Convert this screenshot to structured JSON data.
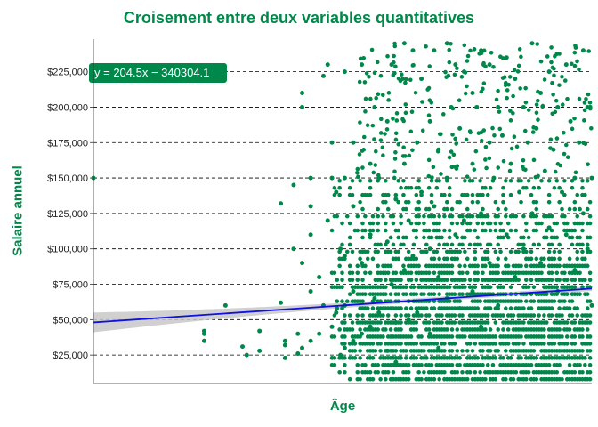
{
  "chart_data": {
    "type": "scatter",
    "title": "Croisement entre deux variables quantitatives",
    "xlabel": "Âge",
    "ylabel": "Salaire annuel",
    "x_tick_labels": [],
    "y_ticks": [
      {
        "value": 25000,
        "label": "$25,000"
      },
      {
        "value": 50000,
        "label": "$50,000"
      },
      {
        "value": 75000,
        "label": "$75,000"
      },
      {
        "value": 100000,
        "label": "$100,000"
      },
      {
        "value": 125000,
        "label": "$125,000"
      },
      {
        "value": 150000,
        "label": "$150,000"
      },
      {
        "value": 175000,
        "label": "$175,000"
      },
      {
        "value": 200000,
        "label": "$200,000"
      },
      {
        "value": 225000,
        "label": "$225,000"
      }
    ],
    "xlim": [
      1899,
      2016
    ],
    "ylim": [
      5000,
      248000
    ],
    "grid": "horizontal dashed",
    "annotation": "y = 204.5x − 340304.1",
    "regression": {
      "slope": 204.5,
      "intercept": -340304.1
    },
    "colors": {
      "points": "#00884a",
      "line": "#1010e0",
      "band": "#c8c8c8",
      "annotation_bg": "#00884a",
      "title": "#00884a"
    },
    "series": [
      {
        "x": [
          1899,
          1925,
          1925,
          1925,
          1930,
          1934,
          1935,
          1938,
          1938,
          1943,
          1943,
          1944,
          1944,
          1944,
          1946,
          1946,
          1947,
          1947,
          1948,
          1948,
          1948,
          1948,
          1950,
          1950,
          1950,
          1950,
          1950,
          1952,
          1952,
          1953,
          1953,
          1954,
          1954,
          1955,
          1955,
          1955,
          1956,
          1956,
          1957,
          1957,
          1958,
          1958,
          1958,
          1958,
          1958,
          1960,
          1960,
          1960,
          1960,
          1962,
          1962,
          1962,
          1964,
          1964,
          1964,
          1965,
          1965,
          1966,
          1966,
          1968,
          1968,
          1968,
          1969,
          1969,
          1970,
          1970,
          1970,
          1972,
          1972,
          1972,
          1973,
          1973,
          1974,
          1974,
          1975,
          1975,
          1976,
          1976,
          1978,
          1978,
          1978,
          1979,
          1979,
          1980,
          1980,
          1980,
          1982,
          1982,
          1982,
          1983,
          1984,
          1984,
          1985,
          1985,
          1986,
          1986,
          1988,
          1988,
          1988,
          1989,
          1990,
          1990,
          1990,
          1992,
          1992,
          1992,
          1993,
          1994,
          1994,
          1995,
          1996,
          1996,
          1997,
          1998,
          1998,
          1999,
          2000,
          2000,
          2001,
          2002,
          2002,
          2003,
          2004,
          2004,
          2005,
          2006,
          2006,
          2007,
          2008,
          2008,
          2009,
          2010,
          2010,
          2011,
          2012,
          2012,
          2013,
          2014,
          2014,
          2015,
          2015,
          2016,
          2016
        ],
        "y": [
          150000,
          35000,
          40000,
          42000,
          60000,
          31000,
          25000,
          42000,
          28000,
          132000,
          62000,
          32000,
          35000,
          23000,
          145000,
          100000,
          40000,
          26000,
          200000,
          210000,
          90000,
          30000,
          150000,
          130000,
          110000,
          70000,
          35000,
          80000,
          40000,
          222000,
          60000,
          230000,
          120000,
          175000,
          150000,
          45000,
          140000,
          55000,
          100000,
          25000,
          225000,
          150000,
          95000,
          60000,
          30000,
          175000,
          130000,
          70000,
          35000,
          230000,
          90000,
          40000,
          160000,
          110000,
          45000,
          200000,
          65000,
          150000,
          55000,
          190000,
          105000,
          28000,
          230000,
          75000,
          135000,
          48000,
          20000,
          245000,
          160000,
          85000,
          120000,
          50000,
          240000,
          95000,
          175000,
          55000,
          220000,
          140000,
          190000,
          100000,
          40000,
          240000,
          130000,
          170000,
          80000,
          30000,
          245000,
          150000,
          65000,
          200000,
          230000,
          110000,
          185000,
          58000,
          225000,
          120000,
          210000,
          160000,
          70000,
          200000,
          240000,
          125000,
          45000,
          230000,
          175000,
          90000,
          150000,
          200000,
          60000,
          180000,
          235000,
          110000,
          160000,
          220000,
          80000,
          140000,
          200000,
          100000,
          175000,
          245000,
          125000,
          185000,
          210000,
          90000,
          155000,
          225000,
          115000,
          170000,
          200000,
          70000,
          140000,
          230000,
          110000,
          190000,
          150000,
          85000,
          175000,
          240000,
          125000,
          200000,
          100000,
          150000,
          60000
        ]
      }
    ]
  }
}
